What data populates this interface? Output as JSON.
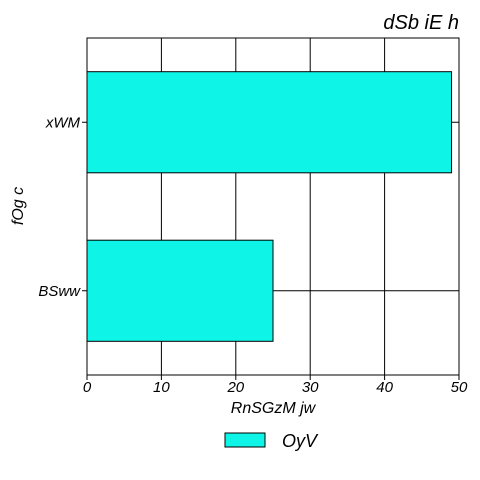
{
  "chart_data": {
    "type": "bar",
    "orientation": "horizontal",
    "title": "dSb iE h",
    "xlabel": "RnSGzM jw",
    "ylabel": "fOg c",
    "categories": [
      "xWM",
      "BSww"
    ],
    "series": [
      {
        "name": "OyV",
        "values": [
          49,
          25
        ],
        "color": "#0ef5e8"
      }
    ],
    "xlim": [
      0,
      50
    ],
    "xticks": [
      "0",
      "10",
      "20",
      "30",
      "40",
      "50"
    ],
    "grid": true,
    "legend_position": "bottom"
  }
}
